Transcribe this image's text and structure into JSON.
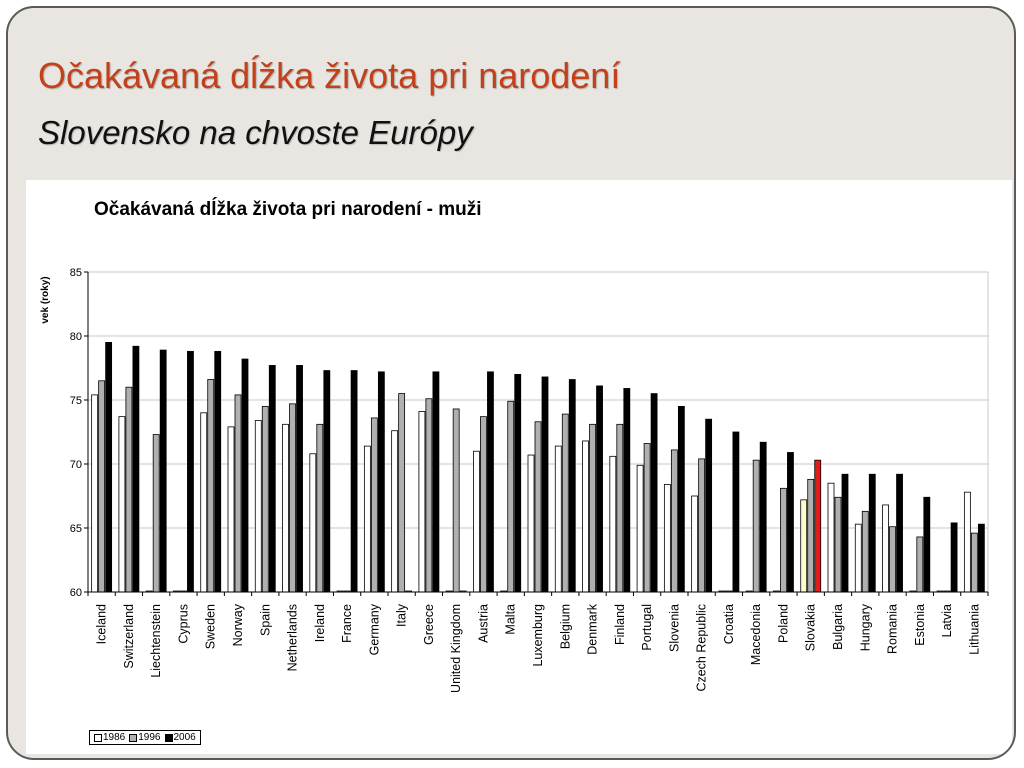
{
  "slide": {
    "title": "Očakávaná dĺžka života pri narodení",
    "subtitle": "Slovensko na chvoste Európy"
  },
  "colors": {
    "title": "#c2401a",
    "slide_background": "#e9e6e1",
    "bar_1986": "#ffffff",
    "bar_1996": "#b0b0b0",
    "bar_2006": "#000000",
    "slovakia_1986": "#fefccc",
    "slovakia_2006": "#e21b1b"
  },
  "chart_data": {
    "type": "bar",
    "title": "Očakávaná dĺžka života pri narodení  - muži",
    "xlabel": "",
    "ylabel": "vek (roky)",
    "ylim": [
      60,
      85
    ],
    "yticks": [
      60,
      65,
      70,
      75,
      80,
      85
    ],
    "grid": true,
    "legend_position": "bottom-left",
    "categories": [
      "Iceland",
      "Switzerland",
      "Liechtenstein",
      "Cyprus",
      "Sweden",
      "Norway",
      "Spain",
      "Netherlands",
      "Ireland",
      "France",
      "Germany",
      "Italy",
      "Greece",
      "United Kingdom",
      "Austria",
      "Malta",
      "Luxemburg",
      "Belgium",
      "Denmark",
      "Finland",
      "Portugal",
      "Slovenia",
      "Czech Republic",
      "Croatia",
      "Macedonia",
      "Poland",
      "Slovakia",
      "Bulgaria",
      "Hungary",
      "Romania",
      "Estonia",
      "Latvia",
      "Lithuania"
    ],
    "highlight_category": "Slovakia",
    "series": [
      {
        "name": "1986",
        "values": [
          75.4,
          73.7,
          null,
          null,
          74.0,
          72.9,
          73.4,
          73.1,
          70.8,
          null,
          71.4,
          72.6,
          74.1,
          null,
          71.0,
          null,
          70.7,
          71.4,
          71.8,
          70.6,
          69.9,
          68.4,
          67.5,
          null,
          null,
          null,
          67.2,
          68.5,
          65.3,
          66.8,
          null,
          null,
          67.8
        ]
      },
      {
        "name": "1996",
        "values": [
          76.5,
          76.0,
          72.3,
          null,
          76.6,
          75.4,
          74.5,
          74.7,
          73.1,
          null,
          73.6,
          75.5,
          75.1,
          74.3,
          73.7,
          74.9,
          73.3,
          73.9,
          73.1,
          73.1,
          71.6,
          71.1,
          70.4,
          null,
          70.3,
          68.1,
          68.8,
          67.4,
          66.3,
          65.1,
          64.3,
          null,
          64.6
        ]
      },
      {
        "name": "2006",
        "values": [
          79.5,
          79.2,
          78.9,
          78.8,
          78.8,
          78.2,
          77.7,
          77.7,
          77.3,
          77.3,
          77.2,
          null,
          77.2,
          null,
          77.2,
          77.0,
          76.8,
          76.6,
          76.1,
          75.9,
          75.5,
          74.5,
          73.5,
          72.5,
          71.7,
          70.9,
          70.3,
          69.2,
          69.2,
          69.2,
          67.4,
          65.4,
          65.3
        ]
      }
    ]
  }
}
